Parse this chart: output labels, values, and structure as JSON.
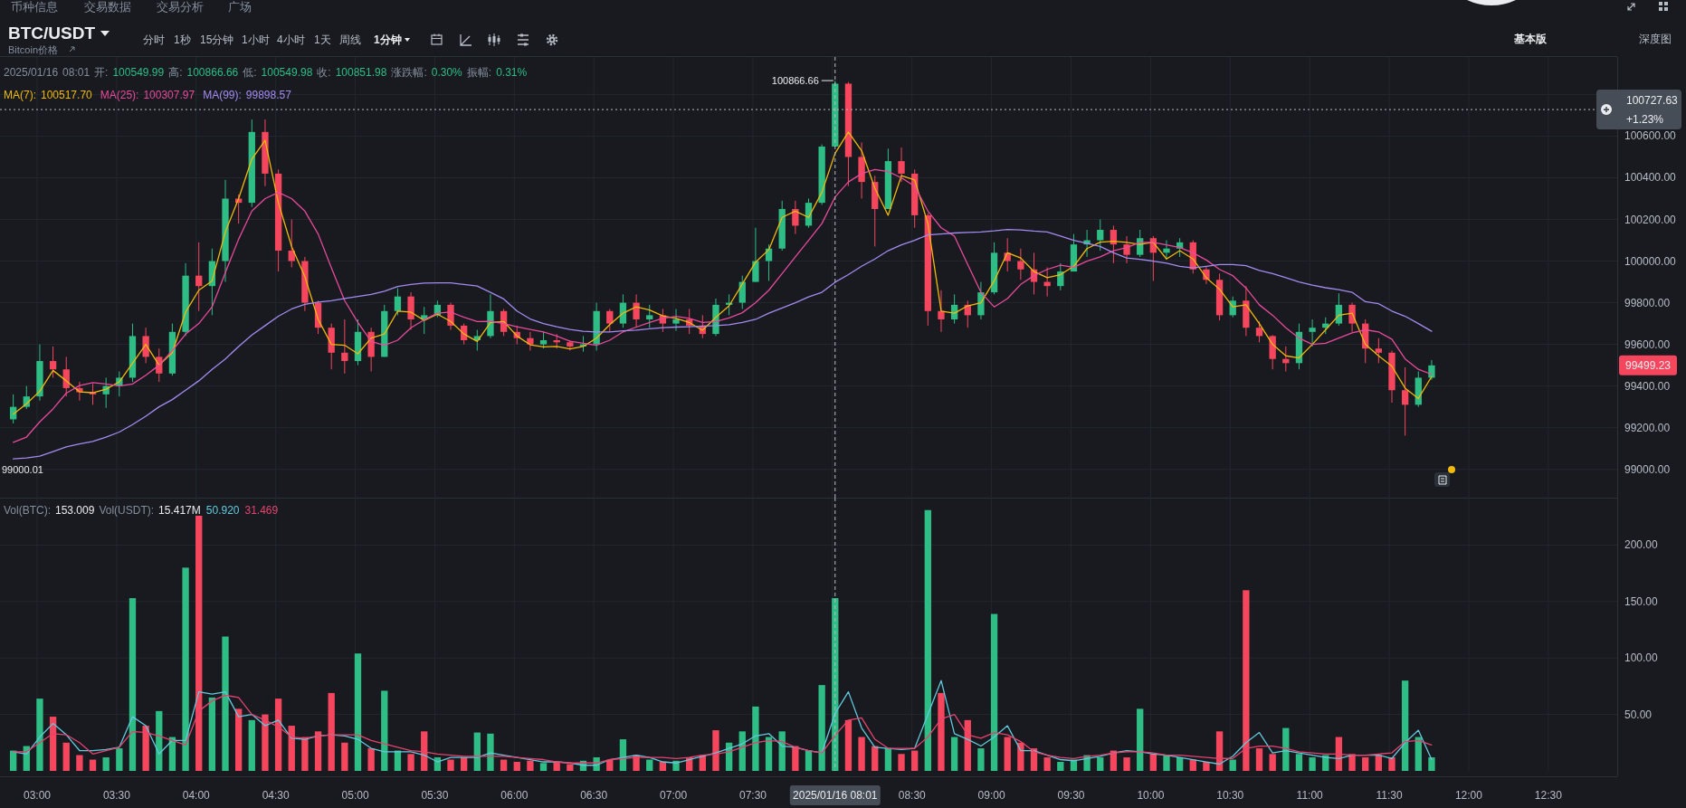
{
  "chart_data": [
    {
      "type": "candlestick",
      "title": "BTC/USDT",
      "subtitle": "Bitcoin价格",
      "x": [
        "2025-01-16T02:51",
        "2025-01-16T02:56",
        "2025-01-16T03:01",
        "2025-01-16T03:06",
        "2025-01-16T03:11",
        "2025-01-16T03:16",
        "2025-01-16T03:21",
        "2025-01-16T03:26",
        "2025-01-16T03:31",
        "2025-01-16T03:36",
        "2025-01-16T03:41",
        "2025-01-16T03:46",
        "2025-01-16T03:51",
        "2025-01-16T03:56",
        "2025-01-16T04:01",
        "2025-01-16T04:06",
        "2025-01-16T04:11",
        "2025-01-16T04:16",
        "2025-01-16T04:21",
        "2025-01-16T04:26",
        "2025-01-16T04:31",
        "2025-01-16T04:36",
        "2025-01-16T04:41",
        "2025-01-16T04:46",
        "2025-01-16T04:51",
        "2025-01-16T04:56",
        "2025-01-16T05:01",
        "2025-01-16T05:06",
        "2025-01-16T05:11",
        "2025-01-16T05:16",
        "2025-01-16T05:21",
        "2025-01-16T05:26",
        "2025-01-16T05:31",
        "2025-01-16T05:36",
        "2025-01-16T05:41",
        "2025-01-16T05:46",
        "2025-01-16T05:51",
        "2025-01-16T05:56",
        "2025-01-16T06:01",
        "2025-01-16T06:06",
        "2025-01-16T06:11",
        "2025-01-16T06:16",
        "2025-01-16T06:21",
        "2025-01-16T06:26",
        "2025-01-16T06:31",
        "2025-01-16T06:36",
        "2025-01-16T06:41",
        "2025-01-16T06:46",
        "2025-01-16T06:51",
        "2025-01-16T06:56",
        "2025-01-16T07:01",
        "2025-01-16T07:06",
        "2025-01-16T07:11",
        "2025-01-16T07:16",
        "2025-01-16T07:21",
        "2025-01-16T07:26",
        "2025-01-16T07:31",
        "2025-01-16T07:36",
        "2025-01-16T07:41",
        "2025-01-16T07:46",
        "2025-01-16T07:51",
        "2025-01-16T07:56",
        "2025-01-16T08:01",
        "2025-01-16T08:06",
        "2025-01-16T08:11",
        "2025-01-16T08:16",
        "2025-01-16T08:21",
        "2025-01-16T08:26",
        "2025-01-16T08:31",
        "2025-01-16T08:36",
        "2025-01-16T08:41",
        "2025-01-16T08:46",
        "2025-01-16T08:51",
        "2025-01-16T08:56",
        "2025-01-16T09:01",
        "2025-01-16T09:06",
        "2025-01-16T09:11",
        "2025-01-16T09:16",
        "2025-01-16T09:21",
        "2025-01-16T09:26",
        "2025-01-16T09:31",
        "2025-01-16T09:36",
        "2025-01-16T09:41",
        "2025-01-16T09:46",
        "2025-01-16T09:51",
        "2025-01-16T09:56",
        "2025-01-16T10:01",
        "2025-01-16T10:06",
        "2025-01-16T10:11",
        "2025-01-16T10:16",
        "2025-01-16T10:21",
        "2025-01-16T10:26",
        "2025-01-16T10:31",
        "2025-01-16T10:36",
        "2025-01-16T10:41",
        "2025-01-16T10:46",
        "2025-01-16T10:51",
        "2025-01-16T10:56",
        "2025-01-16T11:01",
        "2025-01-16T11:06",
        "2025-01-16T11:11",
        "2025-01-16T11:16",
        "2025-01-16T11:21",
        "2025-01-16T11:26",
        "2025-01-16T11:31",
        "2025-01-16T11:36",
        "2025-01-16T11:41",
        "2025-01-16T11:46"
      ],
      "ohlc": [
        [
          99240,
          99360,
          99220,
          99300
        ],
        [
          99300,
          99400,
          99290,
          99350
        ],
        [
          99350,
          99600,
          99330,
          99520
        ],
        [
          99520,
          99590,
          99440,
          99480
        ],
        [
          99480,
          99540,
          99350,
          99390
        ],
        [
          99390,
          99420,
          99330,
          99370
        ],
        [
          99370,
          99410,
          99310,
          99360
        ],
        [
          99360,
          99440,
          99295,
          99400
        ],
        [
          99400,
          99470,
          99350,
          99440
        ],
        [
          99440,
          99700,
          99420,
          99640
        ],
        [
          99640,
          99680,
          99510,
          99540
        ],
        [
          99540,
          99580,
          99420,
          99460
        ],
        [
          99460,
          99700,
          99450,
          99660
        ],
        [
          99660,
          99990,
          99640,
          99930
        ],
        [
          99930,
          100090,
          99760,
          99880
        ],
        [
          99880,
          100060,
          99740,
          100000
        ],
        [
          100000,
          100390,
          99900,
          100300
        ],
        [
          100300,
          100320,
          100180,
          100280
        ],
        [
          100280,
          100680,
          100260,
          100620
        ],
        [
          100620,
          100680,
          100360,
          100420
        ],
        [
          100420,
          100440,
          99950,
          100050
        ],
        [
          100050,
          100200,
          99970,
          100000
        ],
        [
          100000,
          100020,
          99760,
          99800
        ],
        [
          99800,
          99810,
          99650,
          99680
        ],
        [
          99680,
          99700,
          99480,
          99560
        ],
        [
          99560,
          99720,
          99460,
          99520
        ],
        [
          99520,
          99720,
          99500,
          99660
        ],
        [
          99660,
          99680,
          99470,
          99540
        ],
        [
          99540,
          99790,
          99540,
          99760
        ],
        [
          99760,
          99870,
          99740,
          99830
        ],
        [
          99830,
          99850,
          99670,
          99720
        ],
        [
          99720,
          99780,
          99650,
          99740
        ],
        [
          99740,
          99810,
          99730,
          99790
        ],
        [
          99790,
          99800,
          99670,
          99690
        ],
        [
          99690,
          99700,
          99600,
          99620
        ],
        [
          99620,
          99670,
          99570,
          99640
        ],
        [
          99640,
          99840,
          99630,
          99760
        ],
        [
          99760,
          99770,
          99640,
          99660
        ],
        [
          99660,
          99690,
          99600,
          99630
        ],
        [
          99630,
          99660,
          99570,
          99600
        ],
        [
          99600,
          99660,
          99580,
          99620
        ],
        [
          99620,
          99650,
          99580,
          99610
        ],
        [
          99610,
          99620,
          99570,
          99590
        ],
        [
          99590,
          99640,
          99565,
          99600
        ],
        [
          99600,
          99800,
          99570,
          99760
        ],
        [
          99760,
          99770,
          99660,
          99700
        ],
        [
          99700,
          99840,
          99680,
          99800
        ],
        [
          99800,
          99840,
          99680,
          99720
        ],
        [
          99720,
          99790,
          99680,
          99740
        ],
        [
          99740,
          99770,
          99660,
          99700
        ],
        [
          99700,
          99770,
          99665,
          99720
        ],
        [
          99720,
          99770,
          99650,
          99690
        ],
        [
          99690,
          99740,
          99630,
          99650
        ],
        [
          99650,
          99820,
          99640,
          99790
        ],
        [
          99790,
          99840,
          99740,
          99800
        ],
        [
          99800,
          99930,
          99770,
          99900
        ],
        [
          99900,
          100160,
          99900,
          100000
        ],
        [
          100000,
          100080,
          99905,
          100060
        ],
        [
          100060,
          100290,
          100050,
          100250
        ],
        [
          100250,
          100290,
          100130,
          100170
        ],
        [
          100170,
          100300,
          100160,
          100280
        ],
        [
          100280,
          100560,
          100270,
          100550
        ],
        [
          100549.99,
          100866.66,
          100549.98,
          100851.98
        ],
        [
          100851.98,
          100860,
          100360,
          100500
        ],
        [
          100500,
          100570,
          100300,
          100380
        ],
        [
          100380,
          100410,
          100070,
          100250
        ],
        [
          100250,
          100540,
          100250,
          100480
        ],
        [
          100480,
          100545,
          100380,
          100420
        ],
        [
          100420,
          100440,
          100160,
          100220
        ],
        [
          100220,
          100230,
          99690,
          99760
        ],
        [
          99760,
          99860,
          99660,
          99720
        ],
        [
          99720,
          99840,
          99700,
          99790
        ],
        [
          99790,
          99810,
          99680,
          99740
        ],
        [
          99740,
          99900,
          99720,
          99850
        ],
        [
          99850,
          100090,
          99840,
          100040
        ],
        [
          100040,
          100110,
          99950,
          100000
        ],
        [
          100000,
          100060,
          99910,
          99960
        ],
        [
          99960,
          100040,
          99840,
          99900
        ],
        [
          99900,
          99970,
          99830,
          99880
        ],
        [
          99880,
          99990,
          99860,
          99950
        ],
        [
          99950,
          100130,
          99950,
          100080
        ],
        [
          100080,
          100150,
          100020,
          100100
        ],
        [
          100100,
          100200,
          100050,
          100150
        ],
        [
          100150,
          100170,
          99990,
          100080
        ],
        [
          100080,
          100120,
          99990,
          100030
        ],
        [
          100030,
          100150,
          100020,
          100110
        ],
        [
          100110,
          100120,
          99905,
          100040
        ],
        [
          100040,
          100100,
          100010,
          100060
        ],
        [
          100060,
          100110,
          100020,
          100090
        ],
        [
          100090,
          100100,
          99940,
          99960
        ],
        [
          99960,
          99975,
          99890,
          99910
        ],
        [
          99910,
          99940,
          99715,
          99740
        ],
        [
          99740,
          99830,
          99730,
          99810
        ],
        [
          99810,
          99880,
          99640,
          99680
        ],
        [
          99680,
          99710,
          99610,
          99640
        ],
        [
          99640,
          99645,
          99480,
          99530
        ],
        [
          99530,
          99590,
          99470,
          99510
        ],
        [
          99510,
          99700,
          99480,
          99660
        ],
        [
          99660,
          99720,
          99590,
          99680
        ],
        [
          99680,
          99730,
          99650,
          99700
        ],
        [
          99700,
          99845,
          99690,
          99790
        ],
        [
          99790,
          99800,
          99660,
          99700
        ],
        [
          99700,
          99720,
          99510,
          99580
        ],
        [
          99580,
          99630,
          99510,
          99560
        ],
        [
          99560,
          99570,
          99320,
          99380
        ],
        [
          99380,
          99490,
          99162,
          99310
        ],
        [
          99310,
          99470,
          99300,
          99440
        ],
        [
          99440,
          99525,
          99430,
          99499.23
        ]
      ],
      "colors": [
        "#2ebd85",
        "#2ebd85",
        "#2ebd85",
        "#f6465d",
        "#f6465d",
        "#f6465d",
        "#f6465d",
        "#2ebd85",
        "#2ebd85",
        "#2ebd85",
        "#f6465d",
        "#f6465d",
        "#2ebd85",
        "#2ebd85",
        "#f6465d",
        "#2ebd85",
        "#2ebd85",
        "#f6465d",
        "#2ebd85",
        "#f6465d",
        "#f6465d",
        "#f6465d",
        "#f6465d",
        "#f6465d",
        "#f6465d",
        "#f6465d",
        "#2ebd85",
        "#f6465d",
        "#2ebd85",
        "#2ebd85",
        "#f6465d",
        "#2ebd85",
        "#2ebd85",
        "#f6465d",
        "#f6465d",
        "#2ebd85",
        "#2ebd85",
        "#f6465d",
        "#f6465d",
        "#f6465d",
        "#2ebd85",
        "#f6465d",
        "#f6465d",
        "#2ebd85",
        "#2ebd85",
        "#f6465d",
        "#2ebd85",
        "#f6465d",
        "#2ebd85",
        "#f6465d",
        "#2ebd85",
        "#f6465d",
        "#f6465d",
        "#2ebd85",
        "#2ebd85",
        "#2ebd85",
        "#2ebd85",
        "#2ebd85",
        "#2ebd85",
        "#f6465d",
        "#2ebd85",
        "#2ebd85",
        "#2ebd85",
        "#f6465d",
        "#f6465d",
        "#f6465d",
        "#2ebd85",
        "#f6465d",
        "#f6465d",
        "#f6465d",
        "#f6465d",
        "#2ebd85",
        "#f6465d",
        "#2ebd85",
        "#2ebd85",
        "#f6465d",
        "#f6465d",
        "#f6465d",
        "#f6465d",
        "#2ebd85",
        "#2ebd85",
        "#2ebd85",
        "#2ebd85",
        "#f6465d",
        "#f6465d",
        "#2ebd85",
        "#f6465d",
        "#2ebd85",
        "#2ebd85",
        "#f6465d",
        "#f6465d",
        "#f6465d",
        "#2ebd85",
        "#f6465d",
        "#f6465d",
        "#f6465d",
        "#f6465d",
        "#2ebd85",
        "#2ebd85",
        "#2ebd85",
        "#2ebd85",
        "#f6465d",
        "#f6465d",
        "#f6465d",
        "#f6465d",
        "#f6465d",
        "#2ebd85",
        "#2ebd85"
      ],
      "series": [
        {
          "name": "MA(7):",
          "type": "line",
          "color": "#f0b90b",
          "values": [
            99265,
            99315,
            99375,
            99475,
            99425,
            99372,
            99368,
            99385,
            99420,
            99510,
            99600,
            99500,
            99560,
            99755,
            99860,
            99905,
            100140,
            100300,
            100490,
            100580,
            100280,
            100070,
            99925,
            99720,
            99600,
            99596,
            99555,
            99630,
            99650,
            99760,
            99755,
            99715,
            99745,
            99710,
            99650,
            99614,
            99705,
            99710,
            99640,
            99598,
            99588,
            99590,
            99578,
            99590,
            99630,
            99695,
            99750,
            99780,
            99765,
            99737,
            99725,
            99705,
            99668,
            99730,
            99785,
            99890,
            99995,
            100055,
            100210,
            100240,
            100210,
            100330,
            100517.7,
            100620,
            100530,
            100350,
            100220,
            100410,
            100390,
            100180,
            99760,
            99750,
            99785,
            99800,
            99905,
            100040,
            100015,
            99950,
            99920,
            99935,
            99975,
            100060,
            100091,
            100095,
            100090,
            100080,
            100090,
            100010,
            100050,
            100010,
            99920,
            99865,
            99780,
            99790,
            99700,
            99600,
            99545,
            99535,
            99600,
            99670,
            99740,
            99750,
            99600,
            99545,
            99495,
            99390,
            99340,
            99445
          ]
        },
        {
          "name": "MA(25):",
          "type": "line",
          "color": "#e84a9c",
          "values": [
            99130,
            99155,
            99228,
            99290,
            99366,
            99402,
            99416,
            99410,
            99400,
            99410,
            99452,
            99500,
            99570,
            99649,
            99700,
            99780,
            99945,
            100105,
            100240,
            100300,
            100330,
            100300,
            100240,
            100130,
            99968,
            99810,
            99705,
            99614,
            99596,
            99620,
            99680,
            99718,
            99750,
            99755,
            99730,
            99710,
            99711,
            99700,
            99685,
            99672,
            99660,
            99640,
            99615,
            99605,
            99596,
            99620,
            99660,
            99683,
            99705,
            99725,
            99735,
            99725,
            99705,
            99710,
            99727,
            99752,
            99800,
            99860,
            99940,
            100020,
            100100,
            100180,
            100307.97,
            100380,
            100420,
            100440,
            100430,
            100400,
            100360,
            100240,
            100160,
            100120,
            99984,
            99850,
            99780,
            99820,
            99888,
            99930,
            99960,
            99980,
            99970,
            100000,
            100020,
            100050,
            100065,
            100090,
            100090,
            100078,
            100065,
            100040,
            100005,
            99960,
            99930,
            99870,
            99790,
            99740,
            99680,
            99630,
            99600,
            99605,
            99630,
            99655,
            99670,
            99660,
            99625,
            99530,
            99480,
            99456
          ]
        },
        {
          "name": "MA(99):",
          "type": "line",
          "color": "#a48bf0",
          "values": [
            99050,
            99055,
            99063,
            99085,
            99108,
            99122,
            99134,
            99155,
            99179,
            99215,
            99255,
            99300,
            99335,
            99380,
            99425,
            99480,
            99530,
            99590,
            99645,
            99690,
            99735,
            99770,
            99792,
            99803,
            99810,
            99820,
            99830,
            99840,
            99855,
            99878,
            99888,
            99894,
            99895,
            99895,
            99888,
            99880,
            99850,
            99818,
            99760,
            99722,
            99700,
            99685,
            99672,
            99663,
            99660,
            99660,
            99665,
            99668,
            99675,
            99680,
            99683,
            99685,
            99688,
            99690,
            99694,
            99705,
            99720,
            99750,
            99775,
            99800,
            99828,
            99850,
            99898.57,
            99935,
            99975,
            100010,
            100050,
            100078,
            100100,
            100126,
            100130,
            100135,
            100138,
            100140,
            100145,
            100152,
            100150,
            100144,
            100140,
            100120,
            100100,
            100085,
            100070,
            100040,
            100015,
            100008,
            100000,
            99990,
            99975,
            99967,
            99975,
            99983,
            99983,
            99978,
            99955,
            99940,
            99920,
            99900,
            99885,
            99872,
            99863,
            99850,
            99805,
            99795,
            99760,
            99735,
            99700,
            99663
          ]
        }
      ],
      "xlim": [
        "2025-01-16T02:46",
        "2025-01-16T12:56"
      ],
      "xticks": [
        "2025-01-16T03:00",
        "2025-01-16T03:30",
        "2025-01-16T04:00",
        "2025-01-16T04:30",
        "2025-01-16T05:00",
        "2025-01-16T05:30",
        "2025-01-16T06:00",
        "2025-01-16T06:30",
        "2025-01-16T07:00",
        "2025-01-16T07:30",
        "2025-01-16T08:00",
        "2025-01-16T08:30",
        "2025-01-16T09:00",
        "2025-01-16T09:30",
        "2025-01-16T10:00",
        "2025-01-16T10:30",
        "2025-01-16T11:00",
        "2025-01-16T11:30",
        "2025-01-16T12:00",
        "2025-01-16T12:30"
      ],
      "ylim": [
        98864,
        100980
      ],
      "yticks": [
        {
          "value": 99000,
          "label": "99000.00"
        },
        {
          "value": 99200,
          "label": "99200.00"
        },
        {
          "value": 99400,
          "label": "99400.00"
        },
        {
          "value": 99600,
          "label": "99600.00"
        },
        {
          "value": 99800,
          "label": "99800.00"
        },
        {
          "value": 100000,
          "label": "100000.00"
        },
        {
          "value": 100200,
          "label": "100200.00"
        },
        {
          "value": 100400,
          "label": "100400.00"
        },
        {
          "value": 100600,
          "label": "100600.00"
        },
        {
          "value": 100800,
          "label": null
        }
      ],
      "tick_labels": "y",
      "grid": true,
      "legend": "top left",
      "ref_lines": [
        {
          "axis": "x",
          "value": "2025-01-16T08:01",
          "line_style": "dashed",
          "color": "#b7bdc6"
        },
        {
          "axis": "y",
          "value": 100727.63,
          "label": "100727.63",
          "line_style": "dotted",
          "color": "#b7bdc6"
        }
      ],
      "annotations": [
        "2025/01/16 08:01 开: 100549.99 高: 100866.66 低: 100549.98 收: 100851.98 涨跌幅: 0.30% 振幅: 0.31%",
        "100517.70",
        "100307.97",
        "99898.57",
        {
          "text": "100866.66",
          "x": "2025-01-16T08:01",
          "y": 100866.66
        },
        "99000.01",
        "99499.23",
        "+1.23%",
        "币种信息",
        "交易数据",
        "交易分析",
        "广场",
        "分时",
        "1秒",
        "15分钟",
        "1小时",
        "4小时",
        "1天",
        "周线",
        "1分钟",
        "基本版",
        "深度图"
      ]
    },
    {
      "type": "bar",
      "x": [
        "2025-01-16T02:51",
        "2025-01-16T02:56",
        "2025-01-16T03:01",
        "2025-01-16T03:06",
        "2025-01-16T03:11",
        "2025-01-16T03:16",
        "2025-01-16T03:21",
        "2025-01-16T03:26",
        "2025-01-16T03:31",
        "2025-01-16T03:36",
        "2025-01-16T03:41",
        "2025-01-16T03:46",
        "2025-01-16T03:51",
        "2025-01-16T03:56",
        "2025-01-16T04:01",
        "2025-01-16T04:06",
        "2025-01-16T04:11",
        "2025-01-16T04:16",
        "2025-01-16T04:21",
        "2025-01-16T04:26",
        "2025-01-16T04:31",
        "2025-01-16T04:36",
        "2025-01-16T04:41",
        "2025-01-16T04:46",
        "2025-01-16T04:51",
        "2025-01-16T04:56",
        "2025-01-16T05:01",
        "2025-01-16T05:06",
        "2025-01-16T05:11",
        "2025-01-16T05:16",
        "2025-01-16T05:21",
        "2025-01-16T05:26",
        "2025-01-16T05:31",
        "2025-01-16T05:36",
        "2025-01-16T05:41",
        "2025-01-16T05:46",
        "2025-01-16T05:51",
        "2025-01-16T05:56",
        "2025-01-16T06:01",
        "2025-01-16T06:06",
        "2025-01-16T06:11",
        "2025-01-16T06:16",
        "2025-01-16T06:21",
        "2025-01-16T06:26",
        "2025-01-16T06:31",
        "2025-01-16T06:36",
        "2025-01-16T06:41",
        "2025-01-16T06:46",
        "2025-01-16T06:51",
        "2025-01-16T06:56",
        "2025-01-16T07:01",
        "2025-01-16T07:06",
        "2025-01-16T07:11",
        "2025-01-16T07:16",
        "2025-01-16T07:21",
        "2025-01-16T07:26",
        "2025-01-16T07:31",
        "2025-01-16T07:36",
        "2025-01-16T07:41",
        "2025-01-16T07:46",
        "2025-01-16T07:51",
        "2025-01-16T07:56",
        "2025-01-16T08:01",
        "2025-01-16T08:06",
        "2025-01-16T08:11",
        "2025-01-16T08:16",
        "2025-01-16T08:21",
        "2025-01-16T08:26",
        "2025-01-16T08:31",
        "2025-01-16T08:36",
        "2025-01-16T08:41",
        "2025-01-16T08:46",
        "2025-01-16T08:51",
        "2025-01-16T08:56",
        "2025-01-16T09:01",
        "2025-01-16T09:06",
        "2025-01-16T09:11",
        "2025-01-16T09:16",
        "2025-01-16T09:21",
        "2025-01-16T09:26",
        "2025-01-16T09:31",
        "2025-01-16T09:36",
        "2025-01-16T09:41",
        "2025-01-16T09:46",
        "2025-01-16T09:51",
        "2025-01-16T09:56",
        "2025-01-16T10:01",
        "2025-01-16T10:06",
        "2025-01-16T10:11",
        "2025-01-16T10:16",
        "2025-01-16T10:21",
        "2025-01-16T10:26",
        "2025-01-16T10:31",
        "2025-01-16T10:36",
        "2025-01-16T10:41",
        "2025-01-16T10:46",
        "2025-01-16T10:51",
        "2025-01-16T10:56",
        "2025-01-16T11:01",
        "2025-01-16T11:06",
        "2025-01-16T11:11",
        "2025-01-16T11:16",
        "2025-01-16T11:21",
        "2025-01-16T11:26",
        "2025-01-16T11:31",
        "2025-01-16T11:36",
        "2025-01-16T11:41",
        "2025-01-16T11:46"
      ],
      "series": [
        {
          "type": "bar",
          "values": [
            18,
            22,
            64,
            48,
            25,
            14,
            10,
            12,
            20,
            153,
            40,
            53,
            30,
            180,
            226,
            65,
            119,
            55,
            45,
            50,
            64,
            40,
            30,
            35,
            69,
            25,
            104,
            20,
            71,
            18,
            15,
            35,
            12,
            10,
            12,
            34,
            33,
            10,
            8,
            9,
            7,
            8,
            6,
            9,
            12,
            10,
            28,
            14,
            10,
            8,
            9,
            12,
            14,
            36,
            25,
            35,
            57,
            30,
            35,
            22,
            18,
            76,
            153.009,
            45,
            30,
            22,
            20,
            15,
            18,
            231,
            69,
            30,
            45,
            20,
            139,
            30,
            25,
            20,
            12,
            8,
            10,
            14,
            12,
            18,
            12,
            55,
            15,
            14,
            12,
            10,
            8,
            35,
            10,
            160,
            20,
            15,
            38,
            15,
            12,
            14,
            30,
            15,
            12,
            14,
            12,
            80,
            30,
            12
          ],
          "colors": [
            "#2ebd85",
            "#2ebd85",
            "#2ebd85",
            "#f6465d",
            "#f6465d",
            "#f6465d",
            "#f6465d",
            "#2ebd85",
            "#2ebd85",
            "#2ebd85",
            "#f6465d",
            "#2ebd85",
            "#2ebd85",
            "#2ebd85",
            "#f6465d",
            "#2ebd85",
            "#2ebd85",
            "#f6465d",
            "#2ebd85",
            "#f6465d",
            "#f6465d",
            "#f6465d",
            "#f6465d",
            "#f6465d",
            "#f6465d",
            "#f6465d",
            "#2ebd85",
            "#f6465d",
            "#2ebd85",
            "#2ebd85",
            "#f6465d",
            "#f6465d",
            "#2ebd85",
            "#f6465d",
            "#f6465d",
            "#2ebd85",
            "#2ebd85",
            "#f6465d",
            "#f6465d",
            "#f6465d",
            "#2ebd85",
            "#f6465d",
            "#f6465d",
            "#2ebd85",
            "#2ebd85",
            "#f6465d",
            "#2ebd85",
            "#f6465d",
            "#2ebd85",
            "#f6465d",
            "#2ebd85",
            "#f6465d",
            "#f6465d",
            "#f6465d",
            "#2ebd85",
            "#2ebd85",
            "#2ebd85",
            "#2ebd85",
            "#2ebd85",
            "#f6465d",
            "#2ebd85",
            "#2ebd85",
            "#2ebd85",
            "#f6465d",
            "#f6465d",
            "#f6465d",
            "#2ebd85",
            "#f6465d",
            "#f6465d",
            "#2ebd85",
            "#f6465d",
            "#2ebd85",
            "#f6465d",
            "#2ebd85",
            "#2ebd85",
            "#f6465d",
            "#f6465d",
            "#f6465d",
            "#f6465d",
            "#2ebd85",
            "#2ebd85",
            "#2ebd85",
            "#2ebd85",
            "#f6465d",
            "#f6465d",
            "#2ebd85",
            "#f6465d",
            "#2ebd85",
            "#2ebd85",
            "#f6465d",
            "#f6465d",
            "#f6465d",
            "#2ebd85",
            "#f6465d",
            "#f6465d",
            "#f6465d",
            "#2ebd85",
            "#2ebd85",
            "#2ebd85",
            "#2ebd85",
            "#f6465d",
            "#f6465d",
            "#f6465d",
            "#f6465d",
            "#f6465d",
            "#2ebd85",
            "#2ebd85",
            "#2ebd85"
          ]
        },
        {
          "type": "line",
          "color": "#62c9dd",
          "values": [
            17,
            15,
            30,
            42,
            32,
            18,
            18,
            19,
            21,
            48,
            40,
            15,
            27,
            27,
            70,
            68,
            70,
            48,
            50,
            40,
            45,
            29,
            28,
            31,
            32,
            31,
            28,
            20,
            17,
            17,
            17,
            14,
            8,
            12,
            12,
            12,
            16,
            14,
            12,
            10,
            8,
            8,
            7,
            5,
            5,
            10,
            12,
            14,
            12,
            8,
            7,
            10,
            13,
            16,
            20,
            24,
            31,
            33,
            22,
            21,
            18,
            16,
            50.92,
            70,
            38,
            21,
            20,
            19,
            20,
            50,
            80,
            33,
            28,
            22,
            30,
            40,
            18,
            18,
            14,
            10,
            9,
            11,
            13,
            16,
            18,
            17,
            15,
            14,
            12,
            10,
            8,
            6,
            13,
            25,
            34,
            16,
            18,
            16,
            14,
            12,
            11,
            14,
            14,
            14,
            11,
            25,
            36,
            10
          ]
        },
        {
          "type": "line",
          "color": "#e5436e",
          "values": [
            17,
            17,
            25,
            33,
            32,
            25,
            15,
            18,
            21,
            35,
            34,
            31,
            27,
            23,
            53,
            62,
            67,
            65,
            50,
            45,
            39,
            30,
            29,
            31,
            32,
            32,
            32,
            27,
            24,
            21,
            18,
            17,
            15,
            14,
            13,
            13,
            13,
            13,
            12,
            11,
            10,
            8,
            7,
            7,
            7,
            10,
            11,
            12,
            12,
            12,
            11,
            12,
            14,
            15,
            17,
            21,
            25,
            27,
            26,
            21,
            18,
            16,
            31.469,
            45,
            47,
            28,
            20,
            20,
            20,
            30,
            46,
            50,
            32,
            29,
            34,
            32,
            26,
            17,
            14,
            12,
            11,
            13,
            14,
            16,
            17,
            17,
            16,
            14,
            14,
            13,
            12,
            11,
            11,
            20,
            22,
            22,
            20,
            17,
            16,
            15,
            15,
            14,
            14,
            15,
            16,
            26,
            27,
            23
          ]
        }
      ],
      "xlim": [
        "2025-01-16T02:46",
        "2025-01-16T12:56"
      ],
      "xticks": [
        {
          "value": "2025-01-16T03:00",
          "label": "03:00"
        },
        {
          "value": "2025-01-16T03:30",
          "label": "03:30"
        },
        {
          "value": "2025-01-16T04:00",
          "label": "04:00"
        },
        {
          "value": "2025-01-16T04:30",
          "label": "04:30"
        },
        {
          "value": "2025-01-16T05:00",
          "label": "05:00"
        },
        {
          "value": "2025-01-16T05:30",
          "label": "05:30"
        },
        {
          "value": "2025-01-16T06:00",
          "label": "06:00"
        },
        {
          "value": "2025-01-16T06:30",
          "label": "06:30"
        },
        {
          "value": "2025-01-16T07:00",
          "label": "07:00"
        },
        {
          "value": "2025-01-16T07:30",
          "label": "07:30"
        },
        {
          "value": "2025-01-16T08:00",
          "label": null
        },
        {
          "value": "2025-01-16T08:30",
          "label": "08:30"
        },
        {
          "value": "2025-01-16T09:00",
          "label": "09:00"
        },
        {
          "value": "2025-01-16T09:30",
          "label": "09:30"
        },
        {
          "value": "2025-01-16T10:00",
          "label": "10:00"
        },
        {
          "value": "2025-01-16T10:30",
          "label": "10:30"
        },
        {
          "value": "2025-01-16T11:00",
          "label": "11:00"
        },
        {
          "value": "2025-01-16T11:30",
          "label": "11:30"
        },
        {
          "value": "2025-01-16T12:00",
          "label": "12:00"
        },
        {
          "value": "2025-01-16T12:30",
          "label": "12:30"
        }
      ],
      "ylim": [
        0,
        242
      ],
      "yticks": [
        {
          "value": 50,
          "label": "50.00"
        },
        {
          "value": 100,
          "label": "100.00"
        },
        {
          "value": 150,
          "label": "150.00"
        },
        {
          "value": 200,
          "label": "200.00"
        }
      ],
      "grid": true,
      "ref_lines": [
        {
          "axis": "x",
          "value": "2025-01-16T08:01",
          "label": "2025/01/16 08:01",
          "line_style": "dashed",
          "color": "#b7bdc6"
        }
      ],
      "annotations": [
        "Vol(BTC): 153.009 Vol(USDT): 15.417M",
        "50.920",
        "31.469"
      ]
    }
  ]
}
